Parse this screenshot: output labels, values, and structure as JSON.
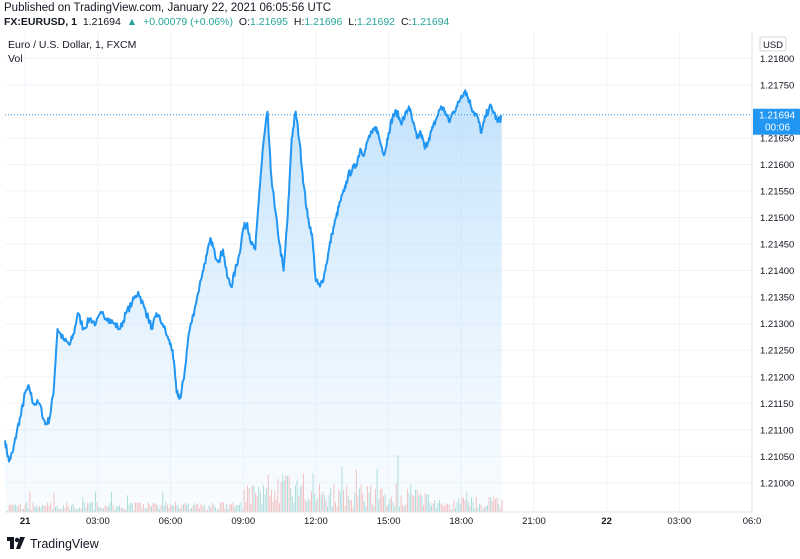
{
  "header": {
    "published": "Published on TradingView.com, January 22, 2021 06:05:56 UTC",
    "symbol": "FX:EURUSD, 1",
    "last": "1.21694",
    "change": "+0.00079 (+0.06%)",
    "open_label": "O:",
    "open": "1.21695",
    "high_label": "H:",
    "high": "1.21696",
    "low_label": "L:",
    "low": "1.21692",
    "close_label": "C:",
    "close": "1.21694"
  },
  "legend": {
    "title": "Euro / U.S. Dollar, 1, FXCM",
    "volume": "Vol"
  },
  "footer": {
    "brand": "TradingView"
  },
  "colors": {
    "line": "#2196f3",
    "area_top": "#bbdefb",
    "up": "#26a69a",
    "down": "#ef5350",
    "grid": "#f0f3fa",
    "axis_text": "#131722",
    "price_badge": "#2196f3"
  },
  "chart_data": {
    "type": "area",
    "title": "Euro / U.S. Dollar, 1, FXCM",
    "currency_label": "USD",
    "y_ticks": [
      1.218,
      1.2175,
      1.2165,
      1.216,
      1.2155,
      1.215,
      1.2145,
      1.214,
      1.2135,
      1.213,
      1.2125,
      1.212,
      1.2115,
      1.211,
      1.2105,
      1.21
    ],
    "y_tick_labels": [
      "1.21800",
      "1.21750",
      "1.21650",
      "1.21600",
      "1.21550",
      "1.21500",
      "1.21450",
      "1.21400",
      "1.21350",
      "1.21300",
      "1.21250",
      "1.21200",
      "1.21150",
      "1.21100",
      "1.21050",
      "1.21000"
    ],
    "ylim": [
      1.20945,
      1.2185
    ],
    "x_ticks": [
      {
        "label": "21",
        "t": 0,
        "bold": true
      },
      {
        "label": "03:00",
        "t": 180,
        "bold": false
      },
      {
        "label": "06:00",
        "t": 360,
        "bold": false
      },
      {
        "label": "09:00",
        "t": 540,
        "bold": false
      },
      {
        "label": "12:00",
        "t": 720,
        "bold": false
      },
      {
        "label": "15:00",
        "t": 900,
        "bold": false
      },
      {
        "label": "18:00",
        "t": 1080,
        "bold": false
      },
      {
        "label": "21:00",
        "t": 1260,
        "bold": false
      },
      {
        "label": "22",
        "t": 1440,
        "bold": true
      },
      {
        "label": "03:00",
        "t": 1620,
        "bold": false
      },
      {
        "label": "06:0",
        "t": 1800,
        "bold": false
      }
    ],
    "xlim_minutes": [
      -50,
      1800
    ],
    "last_price": 1.21694,
    "last_price_label": "1.21694",
    "countdown_label": "00:06",
    "series": [
      {
        "name": "EURUSD close",
        "points": [
          [
            -50,
            1.2108
          ],
          [
            -40,
            1.2104
          ],
          [
            -30,
            1.2106
          ],
          [
            -20,
            1.211
          ],
          [
            -10,
            1.2113
          ],
          [
            0,
            1.2117
          ],
          [
            10,
            1.2118
          ],
          [
            20,
            1.2115
          ],
          [
            35,
            1.2115
          ],
          [
            50,
            1.2111
          ],
          [
            60,
            1.2112
          ],
          [
            70,
            1.2117
          ],
          [
            80,
            1.2129
          ],
          [
            95,
            1.2127
          ],
          [
            110,
            1.2126
          ],
          [
            120,
            1.2128
          ],
          [
            130,
            1.2132
          ],
          [
            145,
            1.2129
          ],
          [
            160,
            1.2131
          ],
          [
            175,
            1.213
          ],
          [
            190,
            1.2132
          ],
          [
            205,
            1.2131
          ],
          [
            220,
            1.213
          ],
          [
            235,
            1.2129
          ],
          [
            250,
            1.2132
          ],
          [
            265,
            1.2134
          ],
          [
            280,
            1.2136
          ],
          [
            295,
            1.2133
          ],
          [
            305,
            1.2131
          ],
          [
            315,
            1.2129
          ],
          [
            325,
            1.2132
          ],
          [
            340,
            1.213
          ],
          [
            355,
            1.2127
          ],
          [
            365,
            1.2125
          ],
          [
            375,
            1.2117
          ],
          [
            385,
            1.2116
          ],
          [
            395,
            1.2121
          ],
          [
            405,
            1.2128
          ],
          [
            420,
            1.2133
          ],
          [
            440,
            1.214
          ],
          [
            450,
            1.2143
          ],
          [
            460,
            1.2146
          ],
          [
            470,
            1.2143
          ],
          [
            480,
            1.2142
          ],
          [
            490,
            1.2144
          ],
          [
            500,
            1.2139
          ],
          [
            510,
            1.2137
          ],
          [
            520,
            1.214
          ],
          [
            530,
            1.2143
          ],
          [
            540,
            1.2148
          ],
          [
            550,
            1.2149
          ],
          [
            560,
            1.2145
          ],
          [
            570,
            1.2144
          ],
          [
            580,
            1.2155
          ],
          [
            590,
            1.2164
          ],
          [
            600,
            1.217
          ],
          [
            608,
            1.2159
          ],
          [
            618,
            1.2152
          ],
          [
            630,
            1.2145
          ],
          [
            640,
            1.214
          ],
          [
            650,
            1.215
          ],
          [
            660,
            1.2165
          ],
          [
            670,
            1.217
          ],
          [
            680,
            1.2164
          ],
          [
            690,
            1.2156
          ],
          [
            700,
            1.215
          ],
          [
            710,
            1.2147
          ],
          [
            720,
            1.2138
          ],
          [
            730,
            1.2137
          ],
          [
            740,
            1.2139
          ],
          [
            750,
            1.2143
          ],
          [
            760,
            1.2147
          ],
          [
            770,
            1.215
          ],
          [
            780,
            1.2153
          ],
          [
            790,
            1.2155
          ],
          [
            800,
            1.2158
          ],
          [
            810,
            1.2159
          ],
          [
            820,
            1.216
          ],
          [
            830,
            1.2163
          ],
          [
            840,
            1.2162
          ],
          [
            850,
            1.2165
          ],
          [
            860,
            1.2166
          ],
          [
            870,
            1.2167
          ],
          [
            880,
            1.2164
          ],
          [
            890,
            1.2162
          ],
          [
            900,
            1.2166
          ],
          [
            910,
            1.2169
          ],
          [
            920,
            1.217
          ],
          [
            930,
            1.2168
          ],
          [
            940,
            1.2169
          ],
          [
            950,
            1.2171
          ],
          [
            960,
            1.2168
          ],
          [
            970,
            1.2165
          ],
          [
            980,
            1.2166
          ],
          [
            990,
            1.2163
          ],
          [
            1000,
            1.2165
          ],
          [
            1010,
            1.2167
          ],
          [
            1020,
            1.2169
          ],
          [
            1030,
            1.2171
          ],
          [
            1040,
            1.217
          ],
          [
            1050,
            1.2168
          ],
          [
            1060,
            1.217
          ],
          [
            1070,
            1.2171
          ],
          [
            1080,
            1.2173
          ],
          [
            1090,
            1.2174
          ],
          [
            1100,
            1.2172
          ],
          [
            1110,
            1.217
          ],
          [
            1120,
            1.2169
          ],
          [
            1130,
            1.2166
          ],
          [
            1140,
            1.2169
          ],
          [
            1150,
            1.2171
          ],
          [
            1160,
            1.217
          ],
          [
            1170,
            1.2168
          ],
          [
            1180,
            1.2169
          ]
        ]
      }
    ]
  }
}
